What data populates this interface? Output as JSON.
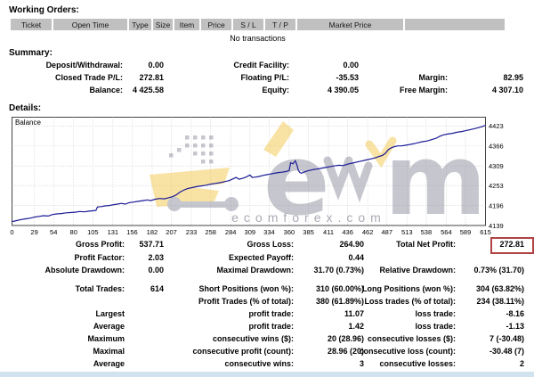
{
  "working_orders": {
    "title": "Working Orders:",
    "columns": [
      "Ticket",
      "Open Time",
      "Type",
      "Size",
      "Item",
      "Price",
      "S / L",
      "T / P",
      "Market Price",
      ""
    ],
    "empty_message": "No transactions"
  },
  "summary": {
    "title": "Summary:",
    "rows": [
      [
        {
          "label": "Deposit/Withdrawal:",
          "value": "0.00"
        },
        {
          "label": "Credit Facility:",
          "value": "0.00"
        },
        {
          "label": "",
          "value": ""
        }
      ],
      [
        {
          "label": "Closed Trade P/L:",
          "value": "272.81"
        },
        {
          "label": "Floating P/L:",
          "value": "-35.53"
        },
        {
          "label": "Margin:",
          "value": "82.95"
        }
      ],
      [
        {
          "label": "Balance:",
          "value": "4 425.58"
        },
        {
          "label": "Equity:",
          "value": "4 390.05"
        },
        {
          "label": "Free Margin:",
          "value": "4 307.10"
        }
      ]
    ]
  },
  "details": {
    "title": "Details:"
  },
  "watermark": {
    "site_text": "ecomforex.com"
  },
  "chart_data": {
    "type": "line",
    "series_label": "Balance",
    "xlabel": "",
    "ylabel": "",
    "xlim": [
      0,
      615
    ],
    "ylim": [
      4139,
      4448
    ],
    "grid": true,
    "x_ticks": [
      0,
      29,
      54,
      80,
      105,
      131,
      156,
      182,
      207,
      233,
      258,
      284,
      309,
      334,
      360,
      385,
      411,
      436,
      462,
      487,
      513,
      538,
      564,
      589,
      615
    ],
    "y_ticks": [
      4423,
      4366,
      4309,
      4253,
      4196,
      4139
    ],
    "points": [
      [
        0,
        4150
      ],
      [
        6,
        4153
      ],
      [
        12,
        4156
      ],
      [
        18,
        4158
      ],
      [
        24,
        4160
      ],
      [
        29,
        4163
      ],
      [
        35,
        4165
      ],
      [
        41,
        4167
      ],
      [
        47,
        4166
      ],
      [
        52,
        4170
      ],
      [
        58,
        4172
      ],
      [
        64,
        4173
      ],
      [
        70,
        4175
      ],
      [
        76,
        4176
      ],
      [
        82,
        4177
      ],
      [
        88,
        4179
      ],
      [
        94,
        4178
      ],
      [
        100,
        4180
      ],
      [
        105,
        4181
      ],
      [
        109,
        4182
      ],
      [
        111,
        4192
      ],
      [
        116,
        4193
      ],
      [
        121,
        4195
      ],
      [
        126,
        4196
      ],
      [
        131,
        4198
      ],
      [
        137,
        4200
      ],
      [
        142,
        4202
      ],
      [
        147,
        4200
      ],
      [
        152,
        4204
      ],
      [
        158,
        4206
      ],
      [
        164,
        4208
      ],
      [
        170,
        4210
      ],
      [
        176,
        4212
      ],
      [
        180,
        4210
      ],
      [
        186,
        4214
      ],
      [
        192,
        4216
      ],
      [
        198,
        4215
      ],
      [
        203,
        4218
      ],
      [
        208,
        4221
      ],
      [
        213,
        4226
      ],
      [
        218,
        4234
      ],
      [
        224,
        4241
      ],
      [
        229,
        4245
      ],
      [
        234,
        4247
      ],
      [
        240,
        4250
      ],
      [
        246,
        4252
      ],
      [
        252,
        4254
      ],
      [
        258,
        4257
      ],
      [
        264,
        4259
      ],
      [
        270,
        4261
      ],
      [
        276,
        4264
      ],
      [
        282,
        4267
      ],
      [
        287,
        4272
      ],
      [
        291,
        4276
      ],
      [
        295,
        4271
      ],
      [
        300,
        4274
      ],
      [
        305,
        4278
      ],
      [
        309,
        4283
      ],
      [
        312,
        4276
      ],
      [
        316,
        4277
      ],
      [
        321,
        4279
      ],
      [
        326,
        4282
      ],
      [
        331,
        4284
      ],
      [
        336,
        4286
      ],
      [
        341,
        4288
      ],
      [
        346,
        4290
      ],
      [
        351,
        4291
      ],
      [
        356,
        4293
      ],
      [
        360,
        4296
      ],
      [
        362,
        4318
      ],
      [
        365,
        4315
      ],
      [
        368,
        4324
      ],
      [
        370,
        4312
      ],
      [
        372,
        4296
      ],
      [
        374,
        4290
      ],
      [
        376,
        4288
      ],
      [
        380,
        4292
      ],
      [
        384,
        4295
      ],
      [
        388,
        4297
      ],
      [
        392,
        4299
      ],
      [
        396,
        4300
      ],
      [
        401,
        4302
      ],
      [
        406,
        4304
      ],
      [
        411,
        4306
      ],
      [
        418,
        4309
      ],
      [
        425,
        4311
      ],
      [
        430,
        4310
      ],
      [
        436,
        4314
      ],
      [
        442,
        4317
      ],
      [
        448,
        4320
      ],
      [
        454,
        4323
      ],
      [
        460,
        4326
      ],
      [
        466,
        4329
      ],
      [
        472,
        4332
      ],
      [
        477,
        4336
      ],
      [
        481,
        4339
      ],
      [
        485,
        4345
      ],
      [
        489,
        4356
      ],
      [
        493,
        4361
      ],
      [
        497,
        4364
      ],
      [
        501,
        4366
      ],
      [
        506,
        4366
      ],
      [
        511,
        4368
      ],
      [
        516,
        4370
      ],
      [
        521,
        4372
      ],
      [
        527,
        4375
      ],
      [
        533,
        4378
      ],
      [
        539,
        4380
      ],
      [
        545,
        4384
      ],
      [
        551,
        4388
      ],
      [
        556,
        4394
      ],
      [
        561,
        4398
      ],
      [
        566,
        4400
      ],
      [
        572,
        4402
      ],
      [
        578,
        4405
      ],
      [
        584,
        4407
      ],
      [
        590,
        4410
      ],
      [
        596,
        4413
      ],
      [
        602,
        4416
      ],
      [
        607,
        4419
      ],
      [
        612,
        4422
      ],
      [
        615,
        4425
      ]
    ]
  },
  "stats": {
    "block_a": [
      [
        {
          "label": "Gross Profit:",
          "value": "537.71"
        },
        {
          "label": "Gross Loss:",
          "value": "264.90"
        },
        {
          "label": "Total Net Profit:",
          "value": "272.81"
        }
      ],
      [
        {
          "label": "Profit Factor:",
          "value": "2.03"
        },
        {
          "label": "Expected Payoff:",
          "value": "0.44"
        },
        {
          "label": "",
          "value": ""
        }
      ],
      [
        {
          "label": "Absolute Drawdown:",
          "value": "0.00"
        },
        {
          "label": "Maximal Drawdown:",
          "value": "31.70 (0.73%)"
        },
        {
          "label": "Relative Drawdown:",
          "value": "0.73% (31.70)"
        }
      ]
    ],
    "block_b": [
      [
        {
          "label": "Total Trades:",
          "value": "614"
        },
        {
          "label": "Short Positions (won %):",
          "value": "310 (60.00%)"
        },
        {
          "label": "Long Positions (won %):",
          "value": "304 (63.82%)"
        }
      ],
      [
        {
          "label": "",
          "value": ""
        },
        {
          "label": "Profit Trades (% of total):",
          "value": "380 (61.89%)"
        },
        {
          "label": "Loss trades (% of total):",
          "value": "234 (38.11%)"
        }
      ],
      [
        {
          "label": "Largest",
          "value": ""
        },
        {
          "label": "profit trade:",
          "value": "11.07"
        },
        {
          "label": "loss trade:",
          "value": "-8.16"
        }
      ],
      [
        {
          "label": "Average",
          "value": ""
        },
        {
          "label": "profit trade:",
          "value": "1.42"
        },
        {
          "label": "loss trade:",
          "value": "-1.13"
        }
      ],
      [
        {
          "label": "Maximum",
          "value": ""
        },
        {
          "label": "consecutive wins ($):",
          "value": "20 (28.96)"
        },
        {
          "label": "consecutive losses ($):",
          "value": "7 (-30.48)"
        }
      ],
      [
        {
          "label": "Maximal",
          "value": ""
        },
        {
          "label": "consecutive profit (count):",
          "value": "28.96 (20)"
        },
        {
          "label": "consecutive loss (count):",
          "value": "-30.48 (7)"
        }
      ],
      [
        {
          "label": "Average",
          "value": ""
        },
        {
          "label": "consecutive wins:",
          "value": "3"
        },
        {
          "label": "consecutive losses:",
          "value": "2"
        }
      ]
    ]
  },
  "colors": {
    "balance_line": "#1a1a96",
    "header_cell_bg": "#c0c0c0",
    "highlight_box": "#b04343",
    "grid": "#bcbcbc",
    "watermark_gray": "#8f8f9e",
    "watermark_yellow": "#f3c94e",
    "bottom_strip": "#d2e3f0"
  }
}
